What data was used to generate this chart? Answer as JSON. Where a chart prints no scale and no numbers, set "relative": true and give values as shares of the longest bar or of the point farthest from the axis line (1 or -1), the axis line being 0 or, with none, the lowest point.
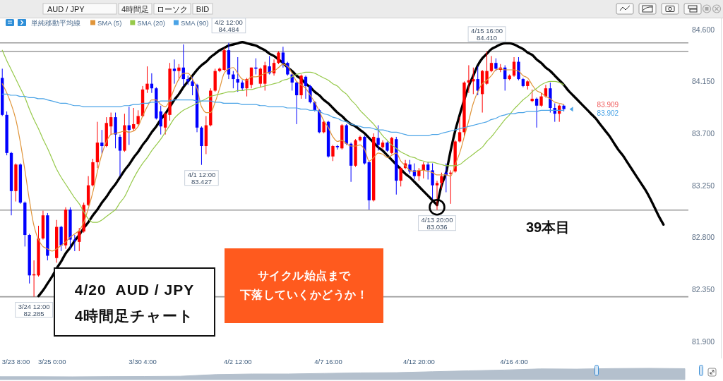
{
  "chart_data": [
    {
      "type": "candlestick",
      "categories": [
        null,
        null,
        null,
        "3/23 8:00",
        null,
        null,
        null,
        null,
        null,
        null,
        null,
        "3/25 0:00",
        null,
        null,
        null,
        null,
        null,
        null,
        null,
        null,
        null,
        null,
        null,
        null,
        null,
        null,
        null,
        null,
        null,
        null,
        null,
        "3/30 4:00",
        null,
        null,
        null,
        null,
        null,
        null,
        null,
        null,
        null,
        null,
        null,
        null,
        null,
        null,
        null,
        null,
        null,
        null,
        null,
        null,
        "4/2 12:00",
        null,
        null,
        null,
        null,
        null,
        null,
        null,
        null,
        null,
        null,
        null,
        null,
        null,
        null,
        null,
        null,
        null,
        null,
        null,
        "4/7 16:00",
        null,
        null,
        null,
        null,
        null,
        null,
        null,
        null,
        null,
        null,
        null,
        null,
        null,
        null,
        null,
        null,
        null,
        null,
        null,
        "4/12 20:00",
        null,
        null,
        null,
        null,
        null,
        null,
        null,
        null,
        null,
        null,
        null,
        null,
        null,
        null,
        null,
        null,
        null,
        null,
        null,
        null,
        "4/16 4:00",
        null,
        null,
        null,
        null,
        null,
        null,
        null,
        null,
        null,
        null,
        null,
        null,
        null,
        null,
        null,
        null,
        null,
        null,
        null,
        null,
        null,
        null,
        null,
        null,
        null,
        null,
        null,
        null,
        null,
        null,
        null,
        null,
        null,
        null,
        null,
        null,
        null,
        null
      ],
      "ohlc": [
        [
          84.18,
          84.26,
          83.85,
          83.86
        ],
        [
          83.86,
          83.89,
          83.51,
          83.53
        ],
        [
          83.53,
          83.54,
          82.99,
          83.2
        ],
        [
          83.2,
          83.44,
          83.11,
          83.43
        ],
        [
          83.43,
          83.44,
          83.09,
          83.1
        ],
        [
          83.1,
          83.11,
          82.72,
          82.82
        ],
        [
          82.82,
          82.83,
          82.4,
          82.47
        ],
        [
          82.47,
          82.6,
          82.285,
          82.48
        ],
        [
          82.47,
          82.9,
          82.46,
          82.79
        ],
        [
          82.79,
          83.03,
          82.78,
          82.99
        ],
        [
          82.99,
          83.01,
          82.6,
          82.64
        ],
        null,
        [
          82.62,
          82.95,
          82.58,
          82.89
        ],
        [
          82.89,
          82.9,
          82.68,
          82.73
        ],
        [
          82.73,
          83.06,
          82.7,
          83.04
        ],
        [
          83.04,
          83.06,
          82.7,
          82.78
        ],
        [
          82.78,
          82.82,
          82.68,
          82.77
        ],
        [
          82.76,
          82.88,
          82.68,
          82.85
        ],
        [
          82.85,
          83.1,
          82.84,
          83.08
        ],
        [
          83.08,
          83.33,
          83.07,
          83.25
        ],
        [
          83.25,
          83.48,
          83.24,
          83.45
        ],
        [
          83.45,
          83.8,
          83.4,
          83.62
        ],
        [
          83.62,
          83.73,
          83.52,
          83.59
        ],
        [
          83.59,
          83.84,
          83.58,
          83.79
        ],
        [
          83.76,
          83.88,
          83.69,
          83.84
        ],
        [
          83.84,
          83.88,
          83.57,
          83.69
        ],
        [
          83.67,
          83.69,
          83.33,
          83.55
        ],
        [
          83.55,
          83.87,
          83.54,
          83.77
        ],
        [
          83.77,
          83.93,
          83.6,
          83.73
        ],
        [
          83.74,
          83.92,
          83.72,
          83.78
        ],
        [
          83.78,
          83.9,
          83.77,
          83.85
        ],
        [
          83.85,
          84.11,
          83.84,
          84.08
        ],
        [
          84.08,
          84.28,
          84.05,
          84.13
        ],
        [
          84.13,
          84.22,
          84.05,
          84.09
        ],
        [
          84.09,
          84.1,
          83.82,
          83.83
        ],
        [
          83.89,
          83.94,
          83.69,
          83.76
        ],
        [
          83.75,
          83.88,
          83.69,
          83.87
        ],
        [
          83.86,
          84.31,
          83.81,
          84.26
        ],
        [
          84.26,
          84.34,
          84.13,
          84.24
        ],
        [
          84.24,
          84.3,
          84.16,
          84.27
        ],
        [
          84.27,
          84.47,
          84.11,
          84.17
        ],
        [
          84.17,
          84.2,
          84.12,
          84.15
        ],
        [
          84.15,
          84.19,
          84.03,
          84.11
        ],
        [
          84.12,
          84.13,
          83.71,
          83.75
        ],
        [
          83.75,
          83.76,
          83.427,
          83.59
        ],
        [
          83.59,
          83.85,
          83.52,
          83.77
        ],
        [
          83.77,
          84.09,
          83.76,
          84.07
        ],
        [
          84.07,
          84.26,
          84.06,
          84.24
        ],
        [
          84.24,
          84.27,
          84.23,
          84.26
        ],
        [
          84.25,
          84.44,
          84.24,
          84.42
        ],
        [
          84.42,
          84.484,
          84.17,
          84.21
        ],
        [
          84.21,
          84.24,
          84.09,
          84.17
        ],
        [
          84.17,
          84.36,
          84.06,
          84.14
        ],
        [
          84.14,
          84.16,
          84.07,
          84.09
        ],
        [
          84.09,
          84.18,
          84.02,
          84.17
        ],
        [
          84.12,
          84.27,
          84.09,
          84.27
        ],
        [
          84.27,
          84.35,
          84.21,
          84.26
        ],
        [
          84.13,
          84.27,
          84.1,
          84.26
        ],
        [
          84.13,
          84.32,
          84.07,
          84.29
        ],
        [
          84.28,
          84.37,
          84.21,
          84.22
        ],
        [
          84.22,
          84.34,
          84.2,
          84.31
        ],
        [
          84.31,
          84.41,
          84.3,
          84.4
        ],
        [
          84.4,
          84.45,
          84.27,
          84.31
        ],
        [
          84.31,
          84.32,
          84.2,
          84.21
        ],
        [
          84.21,
          84.22,
          84.07,
          84.14
        ],
        [
          84.14,
          84.15,
          83.78,
          84.03
        ],
        [
          84.03,
          84.21,
          84,
          84.2
        ],
        [
          84.19,
          84.2,
          84,
          84.11
        ],
        [
          84.11,
          84.12,
          83.96,
          83.97
        ],
        [
          83.97,
          83.98,
          83.89,
          83.9
        ],
        [
          83.9,
          83.91,
          83.7,
          83.71
        ],
        [
          83.71,
          83.81,
          83.7,
          83.8
        ],
        [
          83.8,
          83.81,
          83.49,
          83.5
        ],
        [
          83.5,
          83.6,
          83.46,
          83.59
        ],
        [
          83.59,
          83.6,
          83.56,
          83.58
        ],
        [
          83.57,
          83.78,
          83.56,
          83.77
        ],
        [
          83.77,
          83.78,
          83.6,
          83.61
        ],
        [
          83.61,
          83.62,
          83.28,
          83.42
        ],
        [
          83.42,
          83.65,
          83.41,
          83.64
        ],
        [
          83.64,
          83.68,
          83.63,
          83.67
        ],
        [
          83.67,
          83.68,
          83.43,
          83.44
        ],
        [
          83.45,
          83.46,
          83.04,
          83.12
        ],
        [
          83.12,
          83.7,
          83.11,
          83.67
        ],
        [
          83.66,
          83.77,
          83.55,
          83.6
        ],
        [
          83.58,
          83.64,
          83.56,
          83.62
        ],
        [
          83.62,
          83.63,
          83.54,
          83.55
        ],
        [
          83.53,
          83.67,
          83.52,
          83.66
        ],
        [
          83.65,
          83.67,
          83.17,
          83.29
        ],
        [
          83.29,
          83.41,
          83.24,
          83.4
        ],
        [
          83.4,
          83.47,
          83.39,
          83.44
        ],
        [
          83.43,
          83.47,
          83.35,
          83.37
        ],
        [
          83.38,
          83.44,
          83.3,
          83.33
        ],
        [
          83.33,
          83.4,
          83.29,
          83.38
        ],
        [
          83.38,
          83.45,
          83.31,
          83.43
        ],
        [
          83.43,
          83.45,
          83.3,
          83.38
        ],
        [
          83.38,
          83.44,
          83.13,
          83.25
        ],
        [
          83.25,
          83.29,
          83.036,
          83.27
        ],
        [
          83.27,
          83.36,
          83.22,
          83.33
        ],
        [
          83.36,
          83.44,
          83.19,
          83.34
        ],
        [
          83.35,
          83.38,
          83.09,
          83.36
        ],
        [
          83.37,
          83.64,
          83.36,
          83.63
        ],
        [
          83.63,
          83.84,
          83.62,
          83.71
        ],
        [
          83.71,
          84.15,
          83.67,
          84.14
        ],
        [
          84.14,
          84.29,
          84.05,
          84.16
        ],
        [
          84.15,
          84.27,
          84.04,
          84.17
        ],
        [
          84.17,
          84.28,
          84.03,
          84.07
        ],
        [
          84.04,
          84.25,
          83.88,
          84.24
        ],
        [
          84.13,
          84.41,
          84.12,
          84.24
        ],
        [
          84.24,
          84.37,
          84.23,
          84.31
        ],
        [
          84.31,
          84.35,
          84.24,
          84.26
        ],
        [
          84.25,
          84.3,
          84.23,
          84.27
        ],
        [
          84.27,
          84.29,
          84.07,
          84.17
        ],
        [
          84.17,
          84.21,
          84.16,
          84.2
        ],
        [
          84.2,
          84.36,
          84.19,
          84.32
        ],
        [
          84.32,
          84.36,
          84.16,
          84.17
        ],
        [
          84.17,
          84.18,
          84.1,
          84.11
        ],
        [
          84.11,
          84.16,
          84.08,
          84.15
        ],
        [
          83.98,
          84.08,
          83.97,
          84
        ],
        [
          84,
          84.01,
          83.75,
          83.94
        ],
        [
          83.94,
          84.05,
          83.93,
          84.02
        ],
        [
          84.02,
          84.12,
          84.01,
          84.09
        ],
        [
          84.09,
          84.14,
          83.88,
          83.92
        ],
        [
          83.92,
          83.96,
          83.8,
          83.87
        ],
        [
          83.87,
          83.95,
          83.8,
          83.94
        ],
        [
          83.94,
          83.95,
          83.89,
          83.91
        ],
        null,
        null,
        null,
        null,
        null,
        null,
        null,
        null,
        null,
        null,
        null,
        null,
        null,
        null,
        null,
        null,
        null,
        null,
        null,
        null,
        null,
        null,
        null,
        null,
        null,
        null,
        null
      ],
      "colors": [
        "#0000ff",
        "#0000ff",
        "#0000ff",
        "#ff0000",
        "#0000ff",
        "#0000ff",
        "#0000ff",
        "#ff0000",
        "#ff0000",
        "#ff0000",
        "#0000ff",
        null,
        "#ff0000",
        "#0000ff",
        "#ff0000",
        "#0000ff",
        "#0000ff",
        "#ff0000",
        "#ff0000",
        "#ff0000",
        "#ff0000",
        "#ff0000",
        "#0000ff",
        "#ff0000",
        "#ff0000",
        "#0000ff",
        "#0000ff",
        "#ff0000",
        "#0000ff",
        "#ff0000",
        "#ff0000",
        "#ff0000",
        "#ff0000",
        "#0000ff",
        "#0000ff",
        "#0000ff",
        "#ff0000",
        "#ff0000",
        "#0000ff",
        "#ff0000",
        "#0000ff",
        "#0000ff",
        "#0000ff",
        "#0000ff",
        "#0000ff",
        "#ff0000",
        "#ff0000",
        "#ff0000",
        "#ff0000",
        "#ff0000",
        "#0000ff",
        "#0000ff",
        "#0000ff",
        "#0000ff",
        "#ff0000",
        "#ff0000",
        "#0000ff",
        "#ff0000",
        "#ff0000",
        "#0000ff",
        "#ff0000",
        "#ff0000",
        "#0000ff",
        "#0000ff",
        "#0000ff",
        "#0000ff",
        "#ff0000",
        "#0000ff",
        "#0000ff",
        "#0000ff",
        "#0000ff",
        "#ff0000",
        "#0000ff",
        "#ff0000",
        "#0000ff",
        "#ff0000",
        "#0000ff",
        "#0000ff",
        "#ff0000",
        "#ff0000",
        "#0000ff",
        "#0000ff",
        "#ff0000",
        "#0000ff",
        "#ff0000",
        "#0000ff",
        "#ff0000",
        "#0000ff",
        "#ff0000",
        "#ff0000",
        "#0000ff",
        "#0000ff",
        "#ff0000",
        "#ff0000",
        "#0000ff",
        "#0000ff",
        "#ff0000",
        "#ff0000",
        "#0000ff",
        "#ff0000",
        "#ff0000",
        "#ff0000",
        "#ff0000",
        "#ff0000",
        "#ff0000",
        "#0000ff",
        "#ff0000",
        "#ff0000",
        "#ff0000",
        "#0000ff",
        "#ff0000",
        "#0000ff",
        "#ff0000",
        "#ff0000",
        "#0000ff",
        "#0000ff",
        "#ff0000",
        "#ff0000",
        "#0000ff",
        "#ff0000",
        "#ff0000",
        "#0000ff",
        "#0000ff",
        "#ff0000",
        "#0000ff",
        null,
        null,
        null,
        null,
        null,
        null,
        null,
        null,
        null,
        null,
        null,
        null,
        null,
        null,
        null,
        null,
        null,
        null,
        null,
        null,
        null,
        null,
        null,
        null,
        null,
        null,
        null
      ],
      "series": [
        {
          "name": "SMA (5)",
          "type": "line",
          "color": "#e0953a",
          "values": [
            84.13,
            84.05,
            83.95,
            83.82,
            83.62,
            83.38,
            83.12,
            82.9,
            82.78,
            82.72,
            82.7,
            82.68,
            82.7,
            82.73,
            82.76,
            82.8,
            82.83,
            82.86,
            82.93,
            83.05,
            83.19,
            83.37,
            83.52,
            83.63,
            83.69,
            83.7,
            83.71,
            83.72,
            83.71,
            83.72,
            83.76,
            83.85,
            83.93,
            83.99,
            83.99,
            83.95,
            83.93,
            83.99,
            84.09,
            84.17,
            84.22,
            84.22,
            84.17,
            84.09,
            83.93,
            83.88,
            83.88,
            83.97,
            84.09,
            84.22,
            84.26,
            84.27,
            84.22,
            84.17,
            84.16,
            84.19,
            84.19,
            84.2,
            84.22,
            84.23,
            84.24,
            84.27,
            84.3,
            84.28,
            84.22,
            84.15,
            84.12,
            84.09,
            84.03,
            83.97,
            83.89,
            83.81,
            83.75,
            83.67,
            83.63,
            83.64,
            83.61,
            83.59,
            83.59,
            83.6,
            83.56,
            83.46,
            83.49,
            83.53,
            83.52,
            83.49,
            83.51,
            83.53,
            83.46,
            83.42,
            83.38,
            83.37,
            83.38,
            83.38,
            83.37,
            83.36,
            83.34,
            83.34,
            83.34,
            83.33,
            83.43,
            83.53,
            83.67,
            83.81,
            83.96,
            84.06,
            84.13,
            84.16,
            84.2,
            84.25,
            84.26,
            84.25,
            84.25,
            84.25,
            84.24,
            84.2,
            84.18,
            84.12,
            84.07,
            84.05,
            84.02,
            84,
            83.97,
            83.96,
            83.95,
            null,
            null,
            null,
            null,
            null,
            null,
            null,
            null,
            null,
            null,
            null,
            null,
            null,
            null,
            null,
            null,
            null,
            null,
            null,
            null,
            null,
            null,
            null,
            null,
            null,
            null,
            null
          ]
        },
        {
          "name": "SMA (20)",
          "type": "line",
          "color": "#96c94a",
          "values": [
            84.42,
            84.33,
            84.25,
            84.17,
            84.09,
            84.01,
            83.91,
            83.82,
            83.74,
            83.65,
            83.57,
            83.48,
            83.39,
            83.32,
            83.26,
            83.2,
            83.14,
            83.09,
            83.02,
            82.96,
            82.93,
            82.93,
            82.95,
            82.98,
            83.01,
            83.04,
            83.1,
            83.15,
            83.23,
            83.31,
            83.38,
            83.44,
            83.49,
            83.55,
            83.6,
            83.65,
            83.71,
            83.77,
            83.83,
            83.87,
            83.9,
            83.92,
            83.94,
            83.96,
            83.98,
            84,
            84.02,
            84.03,
            84.04,
            84.05,
            84.06,
            84.06,
            84.07,
            84.07,
            84.08,
            84.08,
            84.09,
            84.1,
            84.11,
            84.12,
            84.13,
            84.14,
            84.16,
            84.17,
            84.19,
            84.21,
            84.22,
            84.23,
            84.23,
            84.22,
            84.2,
            84.18,
            84.16,
            84.13,
            84.11,
            84.07,
            84.04,
            83.99,
            83.95,
            83.9,
            83.86,
            83.82,
            83.78,
            83.73,
            83.68,
            83.64,
            83.6,
            83.57,
            83.54,
            83.52,
            83.5,
            83.49,
            83.47,
            83.46,
            83.45,
            83.45,
            83.44,
            83.43,
            83.42,
            83.42,
            83.42,
            83.43,
            83.46,
            83.49,
            83.52,
            83.55,
            83.58,
            83.63,
            83.67,
            83.72,
            83.77,
            83.82,
            83.86,
            83.91,
            83.95,
            83.99,
            84.02,
            84.06,
            84.09,
            84.12,
            84.14,
            84.15,
            84.15,
            84.14,
            84.12,
            null,
            null,
            null,
            null,
            null,
            null,
            null,
            null,
            null,
            null,
            null,
            null,
            null,
            null,
            null,
            null,
            null,
            null,
            null,
            null,
            null,
            null,
            null,
            null,
            null,
            null,
            null
          ]
        },
        {
          "name": "SMA (90)",
          "type": "line",
          "color": "#4aa3e6",
          "values": [
            84.04,
            84.04,
            84.03,
            84.03,
            84.02,
            84.02,
            84.01,
            84.01,
            84,
            84,
            83.99,
            83.98,
            83.97,
            83.96,
            83.96,
            83.95,
            83.94,
            83.94,
            83.93,
            83.93,
            83.93,
            83.93,
            83.93,
            83.93,
            83.93,
            83.93,
            83.93,
            83.94,
            83.94,
            83.95,
            83.95,
            83.96,
            83.96,
            83.97,
            83.97,
            83.98,
            83.98,
            83.98,
            83.99,
            83.99,
            83.99,
            83.99,
            83.99,
            83.98,
            83.98,
            83.98,
            83.98,
            83.97,
            83.97,
            83.96,
            83.96,
            83.96,
            83.96,
            83.95,
            83.95,
            83.95,
            83.95,
            83.94,
            83.94,
            83.93,
            83.93,
            83.93,
            83.93,
            83.92,
            83.92,
            83.92,
            83.91,
            83.91,
            83.9,
            83.9,
            83.89,
            83.87,
            83.86,
            83.84,
            83.83,
            83.81,
            83.8,
            83.78,
            83.77,
            83.76,
            83.75,
            83.75,
            83.74,
            83.73,
            83.73,
            83.72,
            83.71,
            83.71,
            83.7,
            83.69,
            83.68,
            83.68,
            83.68,
            83.68,
            83.68,
            83.69,
            83.69,
            83.7,
            83.71,
            83.72,
            83.73,
            83.74,
            83.75,
            83.76,
            83.77,
            83.78,
            83.79,
            83.8,
            83.82,
            83.83,
            83.85,
            83.86,
            83.87,
            83.87,
            83.88,
            83.88,
            83.89,
            83.89,
            83.89,
            83.9,
            83.9,
            83.9,
            83.9,
            83.9,
            83.9,
            null,
            null,
            null,
            null,
            null,
            null,
            null,
            null,
            null,
            null,
            null,
            null,
            null,
            null,
            null,
            null,
            null,
            null,
            null,
            null,
            null,
            null,
            null,
            null,
            null,
            null,
            null
          ]
        },
        {
          "type": "line",
          "color": "#000000",
          "values": [
            null,
            null,
            null,
            null,
            null,
            null,
            null,
            null,
            82.29,
            82.34,
            82.4,
            82.46,
            82.53,
            82.59,
            82.66,
            82.71,
            82.77,
            82.82,
            82.88,
            82.93,
            82.99,
            83.04,
            83.1,
            83.15,
            83.21,
            83.26,
            83.32,
            83.38,
            83.43,
            83.49,
            83.54,
            83.6,
            83.65,
            83.71,
            83.76,
            83.82,
            83.87,
            83.93,
            83.99,
            84.04,
            84.1,
            84.15,
            84.2,
            84.25,
            84.29,
            84.32,
            84.36,
            84.39,
            84.42,
            84.44,
            84.46,
            84.47,
            84.48,
            84.49,
            84.48,
            84.47,
            84.46,
            84.44,
            84.42,
            84.39,
            84.37,
            84.34,
            84.31,
            84.27,
            84.24,
            84.2,
            84.17,
            84.13,
            84.1,
            84.06,
            84.03,
            83.99,
            83.96,
            83.92,
            83.88,
            83.85,
            83.81,
            83.78,
            83.76,
            83.73,
            83.7,
            83.66,
            83.62,
            83.58,
            83.55,
            83.51,
            83.47,
            83.43,
            83.39,
            83.35,
            83.32,
            83.28,
            83.24,
            83.2,
            83.16,
            83.12,
            83.08,
            null,
            null,
            null,
            null,
            null,
            null,
            null,
            null,
            null,
            null,
            null,
            null,
            null,
            null,
            null,
            null,
            null,
            null,
            null,
            null,
            null,
            null,
            null,
            null,
            null,
            null,
            null,
            null,
            null,
            null,
            null,
            null,
            null,
            null,
            null,
            null,
            null,
            null,
            null,
            null,
            null,
            null,
            null,
            null,
            null,
            null,
            null,
            null,
            null,
            null,
            null,
            null,
            null,
            null,
            null
          ]
        },
        {
          "type": "line",
          "color": "#000000",
          "values": [
            null,
            null,
            null,
            null,
            null,
            null,
            null,
            null,
            null,
            null,
            null,
            null,
            null,
            null,
            null,
            null,
            null,
            null,
            null,
            null,
            null,
            null,
            null,
            null,
            null,
            null,
            null,
            null,
            null,
            null,
            null,
            null,
            null,
            null,
            null,
            null,
            null,
            null,
            null,
            null,
            null,
            null,
            null,
            null,
            null,
            null,
            null,
            null,
            null,
            null,
            null,
            null,
            null,
            null,
            null,
            null,
            null,
            null,
            null,
            null,
            null,
            null,
            null,
            null,
            null,
            null,
            null,
            null,
            null,
            null,
            null,
            null,
            null,
            null,
            null,
            null,
            null,
            null,
            null,
            null,
            null,
            null,
            null,
            null,
            null,
            null,
            null,
            null,
            null,
            null,
            null,
            null,
            null,
            null,
            null,
            null,
            83.08,
            83.25,
            83.36,
            83.55,
            83.72,
            83.86,
            83.99,
            84.11,
            84.2,
            84.29,
            84.35,
            84.39,
            84.43,
            84.45,
            84.47,
            84.48,
            84.48,
            84.47,
            84.45,
            84.43,
            84.4,
            84.38,
            84.34,
            84.31,
            84.27,
            84.24,
            84.2,
            84.16,
            84.12,
            84.07,
            84.03,
            83.99,
            83.95,
            83.91,
            83.87,
            83.83,
            83.78,
            83.73,
            83.68,
            83.62,
            83.56,
            83.51,
            83.45,
            83.39,
            83.33,
            83.27,
            83.21,
            83.14,
            83.06,
            82.98,
            82.91,
            null,
            null,
            null,
            null,
            null
          ]
        }
      ],
      "ylim": [
        81.9,
        84.69
      ],
      "yticks": [
        {
          "value": 84.6,
          "label": "84.600"
        },
        {
          "value": 84.15,
          "label": "84.150"
        },
        {
          "value": 83.7,
          "label": "83.700"
        },
        {
          "value": 83.25,
          "label": "83.250"
        },
        {
          "value": 82.8,
          "label": "82.800"
        },
        {
          "value": 82.35,
          "label": "82.350"
        },
        {
          "value": 81.9,
          "label": "81.900"
        }
      ],
      "ref_lines": [
        {
          "axis": "y",
          "value": 84.484,
          "color": "#9a9a9a"
        },
        {
          "axis": "y",
          "value": 84.41,
          "color": "#9a9a9a"
        },
        {
          "axis": "y",
          "value": 83.036,
          "color": "#9a9a9a"
        },
        {
          "axis": "y",
          "value": 82.285,
          "color": "#9a9a9a"
        }
      ],
      "legend": "top left",
      "legend_title": "単純移動平均線",
      "annotations": [
        "4/20  AUD / JPY\n4時間足チャート",
        "サイクル始点まで",
        "下落していくかどうか！",
        "39本目",
        "AUD / JPY",
        "4時間足",
        "ローソク",
        "BID",
        "83.909",
        "83.902",
        {
          "text": "4/2 12:00\n84.484",
          "y": 84.484
        },
        {
          "text": "4/1 12:00\n83.427",
          "y": 83.427
        },
        {
          "text": "3/24 12:00\n82.285",
          "y": 82.285
        },
        {
          "text": "4/13 20:00\n83.036",
          "y": 83.036
        },
        {
          "text": "4/15 16:00\n84.410",
          "y": 84.41
        }
      ]
    },
    {
      "type": "area",
      "relative": true,
      "color": "#b4c0cd",
      "categories": [
        null,
        null,
        null,
        null,
        null,
        null,
        null,
        null,
        null,
        null,
        null,
        null,
        null,
        null,
        null,
        null,
        null,
        null,
        null,
        null
      ],
      "values": [
        0.26,
        0.26,
        0.25,
        0.27,
        0.28,
        0.3,
        0.45,
        0.5,
        0.5,
        0.55,
        0.6,
        0.62,
        0.7,
        0.78,
        0.85,
        0.95,
        0.93,
        0.98,
        1,
        0.97
      ]
    }
  ]
}
